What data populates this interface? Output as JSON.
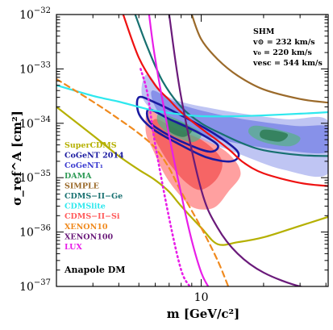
{
  "chart_data": {
    "type": "line",
    "xlabel": "m [GeV/c²]",
    "ylabel": "σ_ref^A [cm²]",
    "xscale": "log",
    "yscale": "log",
    "xlim": [
      2.0,
      41.0
    ],
    "ylim": [
      1e-37,
      1e-32
    ],
    "x_tick_labels": [
      {
        "value": 10,
        "label": "10"
      }
    ],
    "y_tick_labels": [
      {
        "value": 1e-32,
        "base": "10",
        "exp": "−32"
      },
      {
        "value": 1e-33,
        "base": "10",
        "exp": "−33"
      },
      {
        "value": 1e-34,
        "base": "10",
        "exp": "−34"
      },
      {
        "value": 1e-35,
        "base": "10",
        "exp": "−35"
      },
      {
        "value": 1e-36,
        "base": "10",
        "exp": "−36"
      },
      {
        "value": 1e-37,
        "base": "10",
        "exp": "−37"
      }
    ],
    "halo_info": [
      "SHM",
      "v⊙ = 232 km/s",
      "v₀ = 220 km/s",
      "vesc = 544 km/s"
    ],
    "model_label": "Anapole DM",
    "legend_position": "lower-left",
    "regions": [
      {
        "name": "CDMS−II−Si",
        "color": "#ff8080",
        "level": "outer",
        "points": [
          [
            5.6,
            1.8e-34
          ],
          [
            7.0,
            1e-34
          ],
          [
            10.0,
            5.5e-35
          ],
          [
            13.5,
            2.8e-35
          ],
          [
            15.5,
            1.2e-35
          ],
          [
            13.5,
            5.5e-36
          ],
          [
            11.5,
            2.8e-36
          ],
          [
            9.2,
            2.8e-36
          ],
          [
            7.8,
            5e-36
          ],
          [
            6.7,
            1.1e-35
          ],
          [
            5.9,
            3e-35
          ],
          [
            5.4,
            7e-35
          ]
        ]
      },
      {
        "name": "CDMS−II−Si",
        "color": "#f55a5a",
        "level": "inner",
        "points": [
          [
            6.0,
            1.2e-34
          ],
          [
            7.5,
            8e-35
          ],
          [
            10.0,
            5e-35
          ],
          [
            12.5,
            2.2e-35
          ],
          [
            12.0,
            1e-35
          ],
          [
            10.0,
            6e-36
          ],
          [
            8.5,
            8e-36
          ],
          [
            7.2,
            1.6e-35
          ],
          [
            6.3,
            3.5e-35
          ],
          [
            5.8,
            7e-35
          ]
        ]
      },
      {
        "name": "CoGeNT₁",
        "color": "#aab2ef",
        "level": "outer",
        "points": [
          [
            5.5,
            8e-34
          ],
          [
            7.0,
            3e-34
          ],
          [
            12.0,
            1.8e-34
          ],
          [
            25.0,
            1.2e-34
          ],
          [
            41.0,
            1.1e-34
          ],
          [
            41.0,
            1.2e-35
          ],
          [
            25.0,
            1.4e-35
          ],
          [
            15.0,
            2.8e-35
          ],
          [
            9.0,
            6e-35
          ],
          [
            6.5,
            1.2e-34
          ],
          [
            5.2,
            3e-34
          ]
        ]
      },
      {
        "name": "CoGeNT₁",
        "color": "#7d87e6",
        "level": "inner",
        "points": [
          [
            5.8,
            4e-34
          ],
          [
            8.0,
            2.2e-34
          ],
          [
            14.0,
            1.3e-34
          ],
          [
            28.0,
            9e-35
          ],
          [
            41.0,
            8.5e-35
          ],
          [
            41.0,
            3e-35
          ],
          [
            25.0,
            3.2e-35
          ],
          [
            14.0,
            4.5e-35
          ],
          [
            8.5,
            7.5e-35
          ],
          [
            6.3,
            1.5e-34
          ]
        ]
      },
      {
        "name": "DAMA",
        "color": "#58b08a",
        "level": "outer",
        "points": [
          [
            6.3,
            1.5e-34
          ],
          [
            8.0,
            1.1e-34
          ],
          [
            10.0,
            6.5e-35
          ],
          [
            9.0,
            4.5e-35
          ],
          [
            7.0,
            6.5e-35
          ],
          [
            6.2,
            1e-34
          ]
        ]
      },
      {
        "name": "DAMA",
        "color": "#58b08a",
        "level": "outer",
        "points": [
          [
            18.0,
            9e-35
          ],
          [
            24.0,
            7.5e-35
          ],
          [
            30.0,
            5.5e-35
          ],
          [
            27.0,
            3.8e-35
          ],
          [
            20.0,
            4.5e-35
          ],
          [
            17.0,
            6.5e-35
          ]
        ]
      },
      {
        "name": "DAMA",
        "color": "#2e7d55",
        "level": "inner",
        "points": [
          [
            7.0,
            1.2e-34
          ],
          [
            9.0,
            8e-35
          ],
          [
            8.2,
            5.6e-35
          ],
          [
            6.9,
            7.5e-35
          ]
        ]
      },
      {
        "name": "DAMA",
        "color": "#2e7d55",
        "level": "inner",
        "points": [
          [
            20.0,
            7.6e-35
          ],
          [
            26.0,
            6.4e-35
          ],
          [
            24.0,
            4.6e-35
          ],
          [
            19.5,
            5.4e-35
          ]
        ]
      }
    ],
    "contours": [
      {
        "name": "CoGeNT 2014",
        "color": "#1a1aa0",
        "points": [
          [
            5.0,
            3e-34
          ],
          [
            6.0,
            2.4e-34
          ],
          [
            8.0,
            1.4e-34
          ],
          [
            11.5,
            6.5e-35
          ],
          [
            15.0,
            3e-35
          ],
          [
            14.0,
            2e-35
          ],
          [
            10.5,
            2.4e-35
          ],
          [
            7.5,
            4.5e-35
          ],
          [
            5.8,
            8e-35
          ],
          [
            5.0,
            1.5e-34
          ]
        ]
      },
      {
        "name": "CoGeNT 2014",
        "color": "#1a1aa0",
        "points": [
          [
            5.6,
            1.8e-34
          ],
          [
            7.0,
            1.2e-34
          ],
          [
            9.5,
            7e-35
          ],
          [
            12.0,
            4e-35
          ],
          [
            11.0,
            3e-35
          ],
          [
            8.5,
            4.2e-35
          ],
          [
            6.5,
            7e-35
          ],
          [
            5.6,
            1.1e-34
          ]
        ]
      }
    ],
    "series": [
      {
        "name": "SuperCDMS",
        "color": "#b5b000",
        "style": "solid",
        "x": [
          2.0,
          3.0,
          4.0,
          5.0,
          6.0,
          7.0,
          8.0,
          10.0,
          12.0,
          15.0,
          20.0,
          30.0,
          41.0
        ],
        "y": [
          2e-34,
          6e-35,
          2.5e-35,
          1.4e-35,
          9e-36,
          5.5e-36,
          3e-36,
          1.2e-36,
          6e-37,
          6.5e-37,
          8e-37,
          1.3e-36,
          1.9e-36
        ]
      },
      {
        "name": "SIMPLE",
        "color": "#9b6a2a",
        "style": "solid",
        "x": [
          9.0,
          10.0,
          12.0,
          15.0,
          20.0,
          30.0,
          41.0
        ],
        "y": [
          1e-32,
          3.5e-33,
          1.5e-33,
          7.5e-34,
          4.2e-34,
          2.8e-34,
          2.4e-34
        ]
      },
      {
        "name": "CDMS−II−Ge",
        "color": "#177070",
        "style": "solid",
        "x": [
          4.8,
          5.5,
          6.5,
          8.0,
          10.0,
          13.0,
          16.0,
          20.0,
          30.0,
          41.0
        ],
        "y": [
          1e-32,
          2.5e-33,
          6e-34,
          2e-34,
          1e-34,
          6e-35,
          4.2e-35,
          3.2e-35,
          2.6e-35,
          2.5e-35
        ]
      },
      {
        "name": "CDMSlite",
        "color": "#2ee8ee",
        "style": "solid",
        "x": [
          2.0,
          3.0,
          4.0,
          5.0,
          6.0,
          8.0,
          10.0,
          15.0,
          20.0,
          30.0,
          41.0
        ],
        "y": [
          5e-34,
          3.2e-34,
          2.5e-34,
          2e-34,
          1.7e-34,
          1.45e-34,
          1.35e-34,
          1.35e-34,
          1.4e-34,
          1.5e-34,
          1.6e-34
        ]
      },
      {
        "name": "CDMS−II−Si",
        "color": "#ee1111",
        "style": "solid",
        "x": [
          4.2,
          5.0,
          6.0,
          7.0,
          8.0,
          10.0,
          12.0,
          14.0,
          16.0,
          20.0,
          30.0,
          41.0
        ],
        "y": [
          1e-32,
          1.6e-33,
          5e-34,
          2.7e-34,
          1.6e-34,
          8e-35,
          4.8e-35,
          3e-35,
          1.9e-35,
          1.2e-35,
          8e-36,
          7e-36
        ]
      },
      {
        "name": "XENON10",
        "color": "#f08a1e",
        "style": "dashed",
        "x": [
          2.0,
          3.0,
          4.0,
          5.0,
          6.0,
          7.0,
          8.0,
          10.0,
          12.0,
          13.5
        ],
        "y": [
          6.5e-34,
          2.5e-34,
          1.2e-34,
          6.5e-35,
          3.5e-35,
          1.5e-35,
          5.5e-36,
          1.2e-36,
          3e-37,
          1e-37
        ]
      },
      {
        "name": "XENON100",
        "color": "#6a1a7a",
        "style": "solid",
        "x": [
          7.0,
          8.0,
          10.0,
          12.0,
          15.0,
          20.0,
          30.0,
          41.0
        ],
        "y": [
          1e-32,
          3e-34,
          6e-36,
          1.2e-36,
          4e-37,
          1.8e-37,
          1e-37,
          9e-38
        ]
      },
      {
        "name": "LUX",
        "color": "#e81ee8",
        "style": "solid",
        "x": [
          5.6,
          6.0,
          7.0,
          8.0,
          9.0,
          10.0,
          10.8
        ],
        "y": [
          1e-32,
          1.5e-33,
          6e-35,
          5e-36,
          7e-37,
          1.8e-37,
          1e-37
        ]
      },
      {
        "name": "LUX",
        "color": "#e81ee8",
        "style": "dotted",
        "x": [
          5.1,
          5.5,
          6.0,
          7.0,
          8.0,
          8.8
        ],
        "y": [
          1e-33,
          3.5e-34,
          4e-35,
          1.8e-36,
          2e-37,
          1e-37
        ]
      }
    ],
    "legend": [
      {
        "name": "SuperCDMS",
        "color": "#b5b000"
      },
      {
        "name": "CoGeNT 2014",
        "color": "#1a1aa0"
      },
      {
        "name": "CoGeNT₁",
        "color": "#3a3ad0"
      },
      {
        "name": "DAMA",
        "color": "#2e9a55"
      },
      {
        "name": "SIMPLE",
        "color": "#9b6a2a"
      },
      {
        "name": "CDMS−II−Ge",
        "color": "#177070"
      },
      {
        "name": "CDMSlite",
        "color": "#2ee8ee"
      },
      {
        "name": "CDMS−II−Si",
        "color": "#ff5a5a"
      },
      {
        "name": "XENON10",
        "color": "#f08a1e"
      },
      {
        "name": "XENON100",
        "color": "#6a1a7a"
      },
      {
        "name": "LUX",
        "color": "#e81ee8"
      }
    ]
  }
}
